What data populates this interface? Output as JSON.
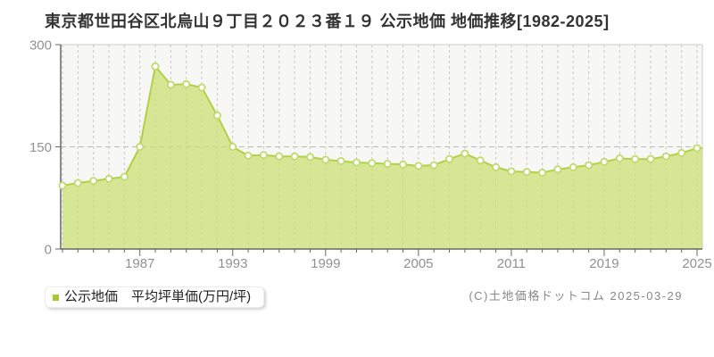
{
  "header": {
    "title": "東京都世田谷区北烏山９丁目２０２３番１９ 公示地価 地価推移[1982-2025]"
  },
  "legend": {
    "label": "公示地価　平均坪単価(万円/坪)",
    "marker_color": "#a6c930"
  },
  "footer": {
    "copyright": "(C)土地価格ドットコム 2025-03-29"
  },
  "chart_data": {
    "type": "area",
    "title": "東京都世田谷区北烏山９丁目２０２３番１９ 公示地価 地価推移[1982-2025]",
    "series_name": "公示地価 平均坪単価",
    "unit": "万円/坪",
    "x_range_label": "1982-2025",
    "ylim": [
      0,
      300
    ],
    "y_ticks": [
      0,
      150,
      300
    ],
    "x_tick_labels": [
      "1987",
      "1993",
      "1999",
      "2005",
      "2011",
      "2019",
      "2025"
    ],
    "x_tick_indices": [
      5,
      11,
      17,
      23,
      29,
      35,
      41
    ],
    "grid": true,
    "legend_position": "bottom-left",
    "values": [
      93,
      97,
      100,
      103,
      106,
      150,
      268,
      241,
      242,
      237,
      196,
      150,
      137,
      138,
      136,
      136,
      135,
      131,
      129,
      127,
      126,
      125,
      124,
      122,
      123,
      132,
      140,
      130,
      120,
      114,
      113,
      112,
      117,
      120,
      123,
      128,
      133,
      132,
      132,
      136,
      141,
      148
    ],
    "colors": {
      "line": "#b0d145",
      "fill": "rgba(202,223,112,0.72)",
      "marker_fill": "#ffffff",
      "marker_stroke": "#c0da6e",
      "grid": "#c9c9c9",
      "grid_h": "#bbbbbb",
      "axis": "#666666",
      "border": "#cccccc",
      "plot_bg": "#f7f7f5",
      "tick_text": "#919191"
    }
  }
}
